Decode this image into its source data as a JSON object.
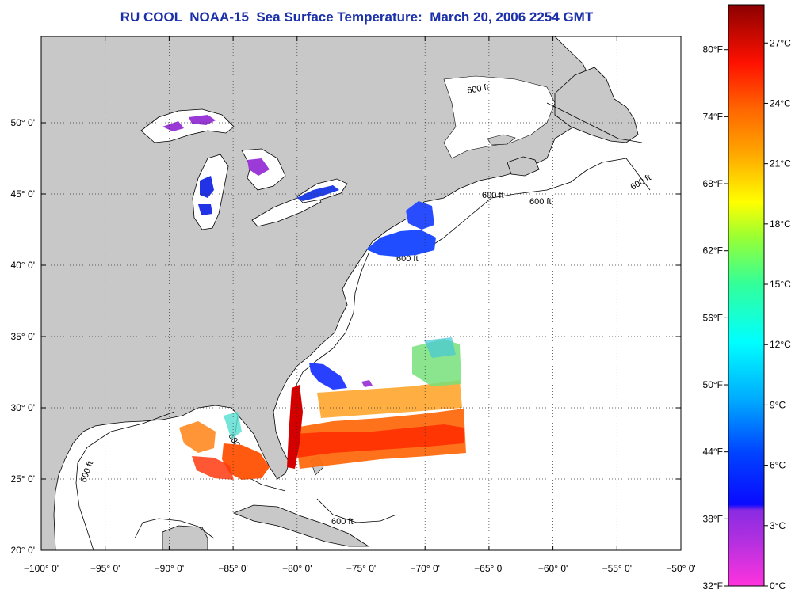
{
  "title": "RU COOL  NOAA-15  Sea Surface Temperature:  March 20, 2006 2254 GMT",
  "map": {
    "lon_ticks": [
      -100,
      -95,
      -90,
      -85,
      -80,
      -75,
      -70,
      -65,
      -60,
      -55,
      -50
    ],
    "lon_tick_labels": [
      "−100° 0'",
      "−95° 0'",
      "−90° 0'",
      "−85° 0'",
      "−80° 0'",
      "−75° 0'",
      "−70° 0'",
      "−65° 0'",
      "−60° 0'",
      "−55° 0'",
      "−50° 0'"
    ],
    "lat_ticks": [
      20,
      25,
      30,
      35,
      40,
      45,
      50
    ],
    "lat_tick_labels": [
      "20° 0'",
      "25° 0'",
      "30° 0'",
      "35° 0'",
      "40° 0'",
      "45° 0'",
      "50° 0'"
    ],
    "isobath_label": "600 ft",
    "grid": "dotted",
    "land_color": "#c8c8c8",
    "ocean_color": "#ffffff"
  },
  "colorbar": {
    "fahrenheit_labels": [
      "80°F",
      "74°F",
      "68°F",
      "62°F",
      "56°F",
      "50°F",
      "44°F",
      "38°F",
      "32°F"
    ],
    "fahrenheit_values": [
      80,
      74,
      68,
      62,
      56,
      50,
      44,
      38,
      32
    ],
    "celsius_labels": [
      "27°C",
      "24°C",
      "21°C",
      "18°C",
      "15°C",
      "12°C",
      "9°C",
      "6°C",
      "3°C",
      "0°C"
    ],
    "celsius_values": [
      27,
      24,
      21,
      18,
      15,
      12,
      9,
      6,
      3,
      0
    ],
    "range_c": [
      0,
      28.9
    ],
    "colors": [
      "#ff33dd",
      "#8a2be2",
      "#0000ff",
      "#00aaff",
      "#00ffff",
      "#33ff66",
      "#ffff00",
      "#ff9900",
      "#ff2200",
      "#8b0000"
    ]
  }
}
